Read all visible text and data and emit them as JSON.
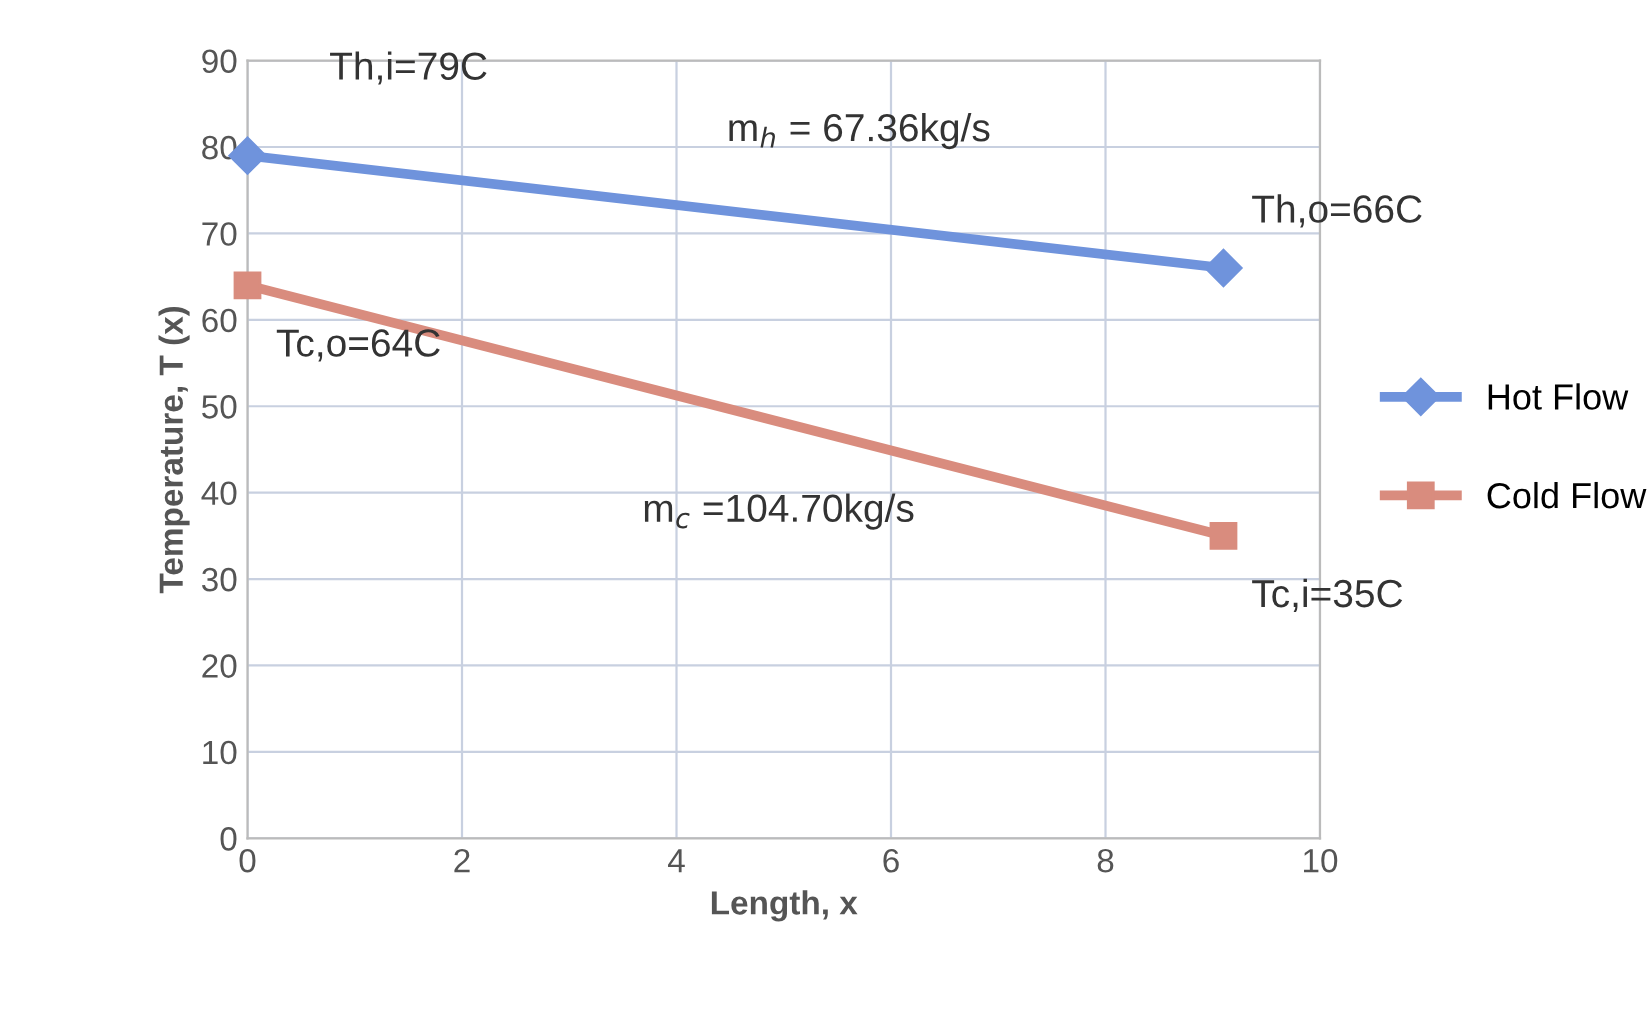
{
  "chart_data": {
    "type": "line",
    "xlabel": "Length, x",
    "ylabel": "Temperature, T (x)",
    "series": [
      {
        "name": "Hot Flow",
        "color": "#6f93dc",
        "values": [
          79,
          66
        ],
        "marker": "diamond"
      },
      {
        "name": "Cold Flow",
        "color": "#d98c7e",
        "values": [
          64,
          35
        ],
        "marker": "square"
      }
    ],
    "x": [
      0,
      9.1
    ],
    "xlim": [
      0,
      10
    ],
    "xticks": [
      0,
      2,
      4,
      6,
      8,
      10
    ],
    "ylim": [
      0,
      90
    ],
    "yticks": [
      0,
      10,
      20,
      30,
      40,
      50,
      60,
      70,
      80,
      90
    ],
    "grid": true,
    "legend": "right",
    "line_style": "solid",
    "annotations": [
      {
        "text": "Th,i=79C",
        "x": 0,
        "y": 79
      },
      {
        "text": "m$_{h}$ = 67.36kg/s",
        "x": 5.7,
        "y": 70.9
      },
      {
        "text": "Th,o=66C",
        "x": 9.1,
        "y": 66
      },
      {
        "text": "Tc,o=64C",
        "x": 0,
        "y": 64
      },
      {
        "text": "m$_{c}$ =104.70kg/s",
        "x": 4.9,
        "y": 48.4
      },
      {
        "text": "Tc,i=35C",
        "x": 9.1,
        "y": 35
      }
    ]
  }
}
